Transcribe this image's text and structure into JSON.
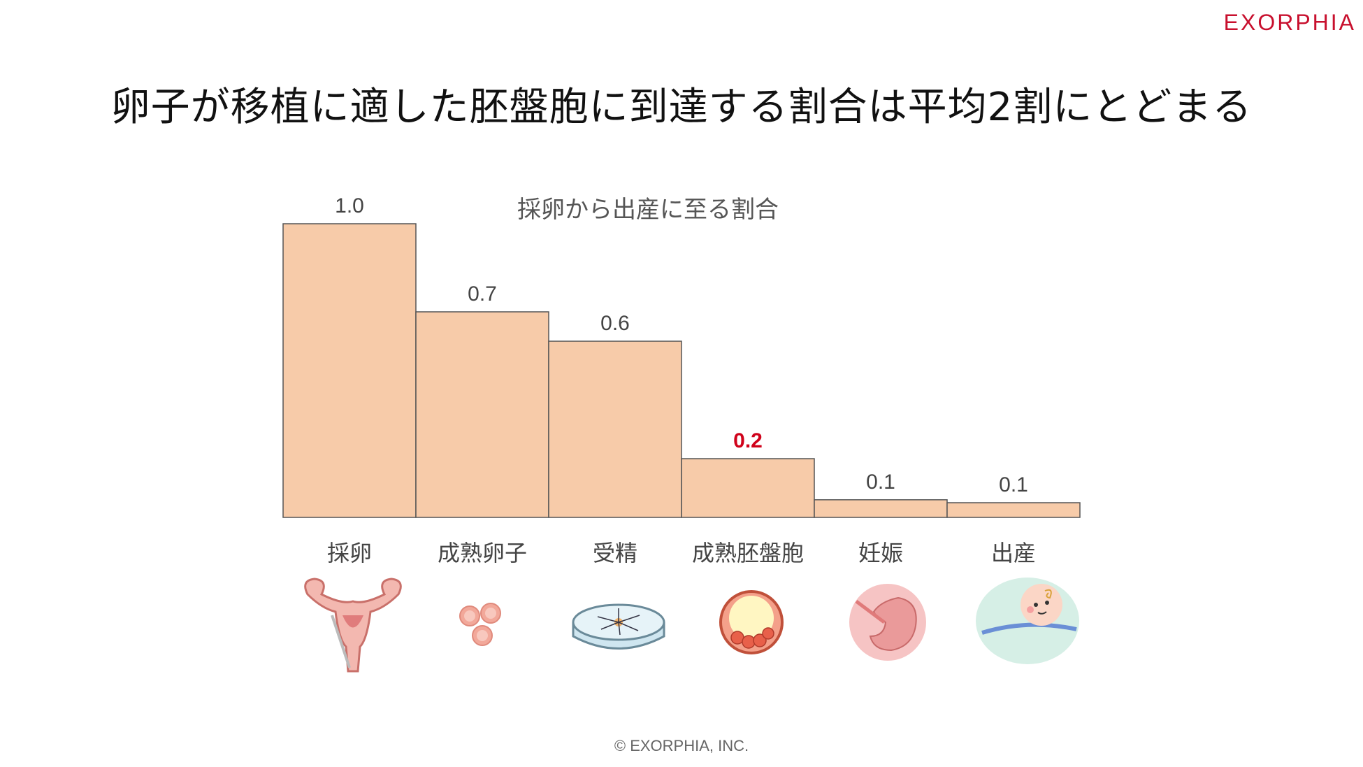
{
  "logo_text": "EXORPHIA",
  "page_title": "卵子が移植に適した胚盤胞に到達する割合は平均2割にとどまる",
  "footer": "© EXORPHIA, INC.",
  "colors": {
    "bar_fill": "#f7cba9",
    "bar_stroke": "#555555",
    "highlight_label": "#d0021b",
    "logo": "#c8102e"
  },
  "chart_data": {
    "type": "bar",
    "title": "採卵から出産に至る割合",
    "categories": [
      "採卵",
      "成熟卵子",
      "受精",
      "成熟胚盤胞",
      "妊娠",
      "出産"
    ],
    "values": [
      1.0,
      0.7,
      0.6,
      0.2,
      0.06,
      0.05
    ],
    "data_labels": [
      "1.0",
      "0.7",
      "0.6",
      "0.2",
      "0.1",
      "0.1"
    ],
    "highlight_index": 3,
    "ylim": [
      0,
      1.0
    ],
    "grid": false,
    "bar_gap": 0
  },
  "icons": [
    "uterus-icon",
    "oocytes-icon",
    "petri-dish-icon",
    "blastocyst-icon",
    "fetus-icon",
    "baby-icon"
  ]
}
